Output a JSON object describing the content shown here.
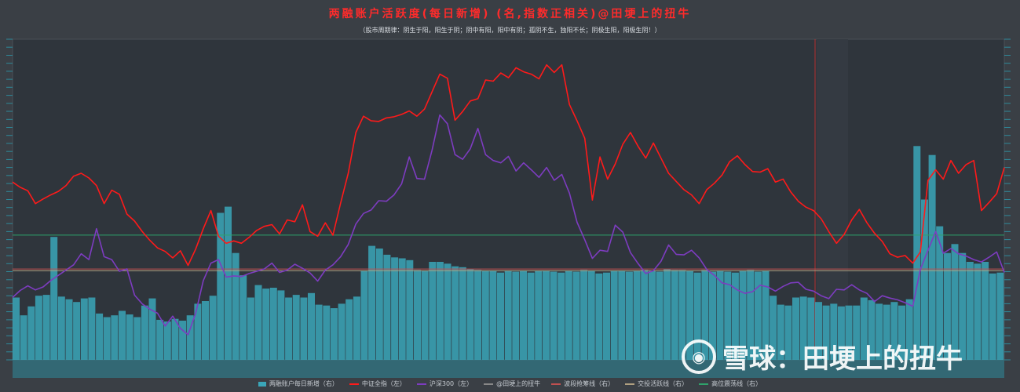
{
  "title": "两融账户活跃度(每日新增) (名,指数正相关)@田埂上的扭牛",
  "subtitle": "（股市周期律：阴生于阳，阳生于阴；阴中有阳，阳中有阴；孤阴不生，独阳不长；阴极生阳，阳极生阴！）",
  "watermark_text": "雪球：田埂上的扭牛",
  "legend": [
    {
      "key": "bars",
      "label": "两融账户每日新增（右）",
      "color": "#3aa6b9"
    },
    {
      "key": "zz",
      "label": "中证全指（左）",
      "color": "#ff1a1a"
    },
    {
      "key": "hs",
      "label": "沪深300（左）",
      "color": "#7d3cc0"
    },
    {
      "key": "author",
      "label": "@田埂上的扭牛",
      "color": "#888888"
    },
    {
      "key": "wave",
      "label": "波段抢筹线（右）",
      "color": "#c05050"
    },
    {
      "key": "active",
      "label": "交投活跃线（右）",
      "color": "#b0a080"
    },
    {
      "key": "high",
      "label": "高位震荡线（右）",
      "color": "#2fa36b"
    }
  ],
  "chart_data": {
    "type": "line",
    "x": [
      0,
      1,
      2,
      3,
      4,
      5,
      6,
      7,
      8,
      9,
      10,
      11,
      12,
      13,
      14,
      15,
      16,
      17,
      18,
      19,
      20,
      21,
      22,
      23,
      24,
      25,
      26,
      27,
      28,
      29,
      30,
      31,
      32,
      33,
      34,
      35,
      36,
      37,
      38,
      39,
      40,
      41,
      42,
      43,
      44,
      45,
      46,
      47,
      48,
      49,
      50,
      51,
      52,
      53,
      54,
      55,
      56,
      57,
      58,
      59,
      60,
      61,
      62,
      63,
      64,
      65,
      66,
      67,
      68,
      69,
      70,
      71,
      72,
      73,
      74,
      75,
      76,
      77,
      78,
      79,
      80,
      81,
      82,
      83,
      84,
      85,
      86,
      87,
      88,
      89,
      90,
      91,
      92,
      93,
      94,
      95,
      96,
      97,
      98,
      99,
      100,
      101,
      102,
      103,
      104,
      105,
      106,
      107,
      108,
      109,
      110,
      111,
      112,
      113,
      114,
      115,
      116,
      117,
      118,
      119,
      120,
      121,
      122,
      123,
      124,
      125,
      126,
      127,
      128,
      129,
      130
    ],
    "series": [
      {
        "key": "zz",
        "name": "中证全指（左）",
        "color": "#ff1a1a",
        "values": [
          5050,
          4960,
          4900,
          4680,
          4760,
          4830,
          4890,
          4990,
          5150,
          5200,
          5120,
          4990,
          4680,
          4910,
          4840,
          4500,
          4380,
          4200,
          4050,
          3920,
          3860,
          3750,
          3870,
          3620,
          3900,
          4250,
          4560,
          4120,
          4000,
          4040,
          4000,
          4100,
          4220,
          4290,
          4320,
          4160,
          4400,
          4370,
          4660,
          4200,
          4120,
          4350,
          4140,
          4690,
          5200,
          5900,
          6180,
          6100,
          6090,
          6150,
          6170,
          6210,
          6270,
          6180,
          6300,
          6600,
          6900,
          6830,
          6110,
          6260,
          6440,
          6480,
          6800,
          6780,
          6920,
          6840,
          7010,
          6940,
          6900,
          6820,
          7060,
          6930,
          7060,
          6380,
          6100,
          5800,
          4740,
          5480,
          5100,
          5360,
          5700,
          5900,
          5660,
          5460,
          5720,
          5460,
          5200,
          5060,
          4920,
          4830,
          4680,
          4920,
          5030,
          5170,
          5400,
          5500,
          5350,
          5230,
          5220,
          5280,
          5050,
          5100,
          4880,
          4720,
          4620,
          4560,
          4420,
          4200,
          4000,
          4150,
          4400,
          4580,
          4350,
          4170,
          4030,
          3820,
          3760,
          3790,
          3660,
          3850,
          5080,
          5260,
          5100,
          5420,
          5200,
          5350,
          5420,
          4560,
          4700,
          4850,
          5300
        ]
      },
      {
        "key": "hs",
        "name": "沪深300（左）",
        "color": "#7d3cc0",
        "values": [
          3070,
          3190,
          3270,
          3200,
          3250,
          3360,
          3450,
          3540,
          3630,
          3820,
          3720,
          4250,
          3770,
          3720,
          3520,
          3560,
          3110,
          2960,
          2870,
          2800,
          2580,
          2750,
          2540,
          2430,
          2800,
          3360,
          3660,
          3720,
          3420,
          3440,
          3430,
          3480,
          3520,
          3560,
          3660,
          3500,
          3540,
          3640,
          3570,
          3490,
          3350,
          3540,
          3630,
          3770,
          3980,
          4330,
          4510,
          4570,
          4730,
          4720,
          4830,
          5020,
          5480,
          5110,
          5100,
          5600,
          6200,
          6050,
          5520,
          5440,
          5620,
          5970,
          5520,
          5420,
          5380,
          5490,
          5240,
          5380,
          5260,
          5130,
          5300,
          5080,
          5180,
          4860,
          4360,
          4060,
          3740,
          3880,
          3860,
          4310,
          4190,
          3840,
          3650,
          3480,
          3530,
          3690,
          3970,
          3810,
          3800,
          3880,
          3750,
          3550,
          3450,
          3320,
          3290,
          3200,
          3140,
          3170,
          3280,
          3250,
          3180,
          3260,
          3320,
          3330,
          3210,
          3180,
          3100,
          3050,
          3210,
          3200,
          3290,
          3200,
          3140,
          3000,
          3100,
          3060,
          3030,
          2980,
          2920,
          3550,
          3880,
          4200,
          3830,
          3910,
          3820,
          3780,
          3720,
          3680,
          3760,
          3850,
          3500
        ]
      }
    ],
    "bars": {
      "name": "两融账户每日新增（右）",
      "color": "#3aa6b9",
      "values": [
        7000,
        5000,
        6000,
        7200,
        7300,
        13800,
        7100,
        6800,
        6500,
        6900,
        7000,
        5200,
        4800,
        5000,
        5500,
        5100,
        4800,
        6100,
        6900,
        4500,
        4300,
        4600,
        4400,
        5000,
        6300,
        6600,
        7200,
        16500,
        17200,
        12000,
        9500,
        7000,
        8400,
        8000,
        8100,
        7800,
        7000,
        7300,
        7000,
        7500,
        6200,
        6100,
        5800,
        6300,
        6800,
        7100,
        10000,
        12800,
        12500,
        11800,
        11500,
        11400,
        11200,
        10100,
        10000,
        11000,
        11000,
        10800,
        10500,
        10400,
        10200,
        10100,
        10000,
        10000,
        9800,
        10000,
        9900,
        10000,
        9800,
        10000,
        10000,
        9900,
        9800,
        10000,
        9900,
        10100,
        10000,
        9700,
        9800,
        10000,
        10000,
        9900,
        10000,
        10100,
        10000,
        9900,
        10200,
        10100,
        10100,
        10000,
        9800,
        10100,
        9900,
        10000,
        9900,
        9800,
        10000,
        10100,
        9900,
        10000,
        7200,
        6200,
        6100,
        7000,
        7100,
        7000,
        6500,
        6100,
        6300,
        6000,
        6100,
        6100,
        7000,
        6700,
        6300,
        6200,
        6500,
        6100,
        6800,
        24000,
        18000,
        23000,
        15000,
        12000,
        13000,
        12000,
        11000,
        10800,
        11000,
        9700,
        9800
      ]
    },
    "ref_lines": [
      {
        "name": "波段抢筹线（右）",
        "value": 10200,
        "color": "#c05050"
      },
      {
        "name": "交投活跃线（右）",
        "value": 10000,
        "color": "#b0a080"
      },
      {
        "name": "高位震荡线（右）",
        "value": 14000,
        "color": "#2fa36b"
      }
    ],
    "ylim_left": [
      2000,
      7500
    ],
    "ylim_right": [
      0,
      36000
    ],
    "grid": false
  }
}
